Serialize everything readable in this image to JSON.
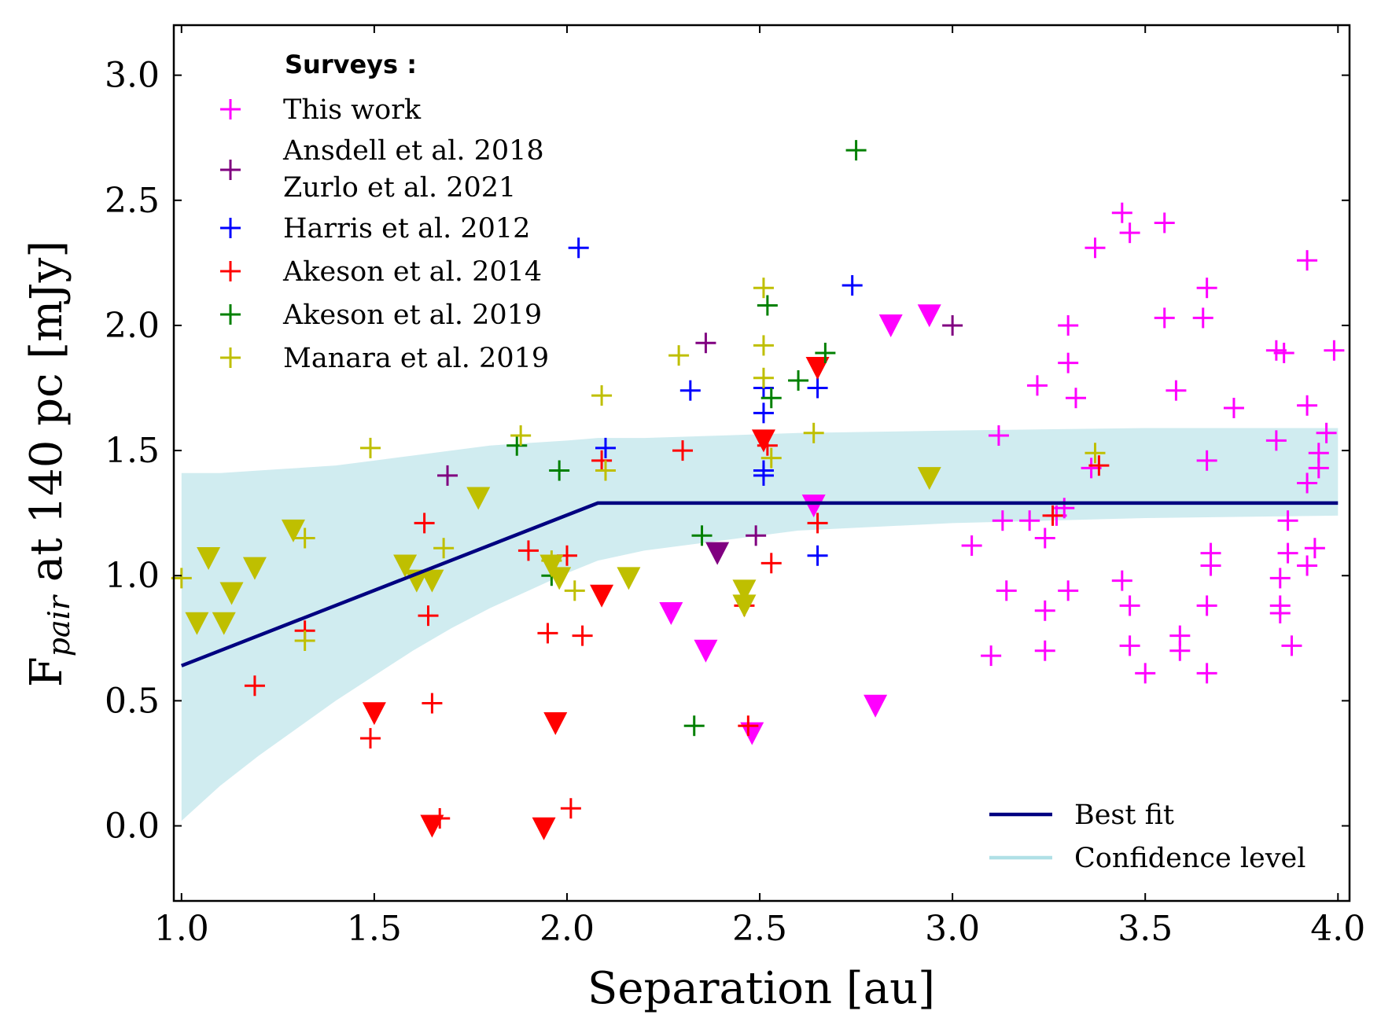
{
  "chart_data": {
    "type": "scatter",
    "xlabel": "Separation [au]",
    "ylabel_main": "F",
    "ylabel_sub": "pair",
    "ylabel_rest": " at 140 pc [mJy]",
    "xlim": [
      0.98,
      4.03
    ],
    "ylim": [
      -0.3,
      3.2
    ],
    "xticks": [
      "1.0",
      "1.5",
      "2.0",
      "2.5",
      "3.0",
      "3.5",
      "4.0"
    ],
    "xtick_values": [
      1.0,
      1.5,
      2.0,
      2.5,
      3.0,
      3.5,
      4.0
    ],
    "yticks": [
      "0.0",
      "0.5",
      "1.0",
      "1.5",
      "2.0",
      "2.5",
      "3.0"
    ],
    "ytick_values": [
      0.0,
      0.5,
      1.0,
      1.5,
      2.0,
      2.5,
      3.0
    ],
    "legend_title": "Surveys :",
    "series": [
      {
        "name": "This work",
        "color": "#ff00ff",
        "points": [
          [
            3.05,
            1.12
          ],
          [
            3.1,
            0.68
          ],
          [
            3.12,
            1.56
          ],
          [
            3.13,
            1.22
          ],
          [
            3.14,
            0.94
          ],
          [
            3.2,
            1.22
          ],
          [
            3.22,
            1.76
          ],
          [
            3.24,
            1.15
          ],
          [
            3.24,
            0.86
          ],
          [
            3.24,
            0.7
          ],
          [
            3.27,
            1.24
          ],
          [
            3.29,
            1.27
          ],
          [
            3.3,
            2.0
          ],
          [
            3.3,
            1.85
          ],
          [
            3.3,
            0.94
          ],
          [
            3.32,
            1.71
          ],
          [
            3.36,
            1.43
          ],
          [
            3.37,
            2.31
          ],
          [
            3.44,
            2.45
          ],
          [
            3.44,
            0.98
          ],
          [
            3.46,
            2.37
          ],
          [
            3.46,
            0.88
          ],
          [
            3.46,
            0.72
          ],
          [
            3.5,
            0.61
          ],
          [
            3.55,
            2.41
          ],
          [
            3.55,
            2.03
          ],
          [
            3.58,
            1.74
          ],
          [
            3.59,
            0.76
          ],
          [
            3.59,
            0.7
          ],
          [
            3.65,
            2.03
          ],
          [
            3.66,
            2.15
          ],
          [
            3.66,
            1.46
          ],
          [
            3.66,
            0.88
          ],
          [
            3.66,
            0.61
          ],
          [
            3.67,
            1.09
          ],
          [
            3.67,
            1.04
          ],
          [
            3.73,
            1.67
          ],
          [
            3.84,
            1.9
          ],
          [
            3.84,
            1.54
          ],
          [
            3.86,
            1.89
          ],
          [
            3.85,
            0.99
          ],
          [
            3.85,
            0.88
          ],
          [
            3.85,
            0.85
          ],
          [
            3.87,
            1.22
          ],
          [
            3.87,
            1.09
          ],
          [
            3.88,
            0.72
          ],
          [
            3.92,
            2.26
          ],
          [
            3.92,
            1.68
          ],
          [
            3.92,
            1.37
          ],
          [
            3.92,
            1.04
          ],
          [
            3.94,
            1.11
          ],
          [
            3.95,
            1.49
          ],
          [
            3.95,
            1.43
          ],
          [
            3.97,
            1.57
          ],
          [
            3.99,
            1.9
          ]
        ],
        "upper_limits": [
          [
            2.27,
            0.85
          ],
          [
            2.36,
            0.7
          ],
          [
            2.48,
            0.37
          ],
          [
            2.64,
            1.28
          ],
          [
            2.8,
            0.48
          ],
          [
            2.84,
            2.0
          ],
          [
            2.94,
            2.04
          ]
        ]
      },
      {
        "name": "Ansdell et al. 2018\nZurlo et al. 2021",
        "color": "#800080",
        "points": [
          [
            1.69,
            1.4
          ],
          [
            2.36,
            1.93
          ],
          [
            2.49,
            1.16
          ],
          [
            3.0,
            2.0
          ]
        ],
        "upper_limits": [
          [
            2.39,
            1.09
          ]
        ]
      },
      {
        "name": "Harris et al. 2012",
        "color": "#0000ff",
        "points": [
          [
            2.03,
            2.31
          ],
          [
            2.1,
            1.51
          ],
          [
            2.32,
            1.74
          ],
          [
            2.51,
            1.75
          ],
          [
            2.51,
            1.65
          ],
          [
            2.51,
            1.42
          ],
          [
            2.51,
            1.4
          ],
          [
            2.65,
            1.75
          ],
          [
            2.65,
            1.08
          ],
          [
            2.74,
            2.16
          ]
        ],
        "upper_limits": []
      },
      {
        "name": "Akeson et al. 2014",
        "color": "#ff0000",
        "points": [
          [
            1.19,
            0.56
          ],
          [
            1.32,
            0.78
          ],
          [
            1.49,
            0.35
          ],
          [
            1.63,
            1.21
          ],
          [
            1.64,
            0.84
          ],
          [
            1.65,
            0.49
          ],
          [
            1.67,
            0.03
          ],
          [
            1.9,
            1.1
          ],
          [
            1.95,
            0.77
          ],
          [
            2.0,
            1.08
          ],
          [
            2.01,
            0.07
          ],
          [
            2.04,
            0.76
          ],
          [
            2.09,
            1.46
          ],
          [
            2.3,
            1.5
          ],
          [
            2.46,
            0.88
          ],
          [
            2.47,
            0.4
          ],
          [
            2.52,
            1.52
          ],
          [
            2.53,
            1.05
          ],
          [
            2.65,
            1.21
          ],
          [
            3.26,
            1.24
          ],
          [
            3.38,
            1.44
          ]
        ],
        "upper_limits": [
          [
            1.5,
            0.45
          ],
          [
            1.65,
            0.0
          ],
          [
            1.94,
            -0.01
          ],
          [
            1.97,
            0.41
          ],
          [
            2.09,
            0.92
          ],
          [
            2.51,
            1.54
          ],
          [
            2.65,
            1.83
          ]
        ]
      },
      {
        "name": "Akeson et al. 2019",
        "color": "#008000",
        "points": [
          [
            1.87,
            1.52
          ],
          [
            1.96,
            1.0
          ],
          [
            1.98,
            1.42
          ],
          [
            2.33,
            0.4
          ],
          [
            2.35,
            1.16
          ],
          [
            2.52,
            2.08
          ],
          [
            2.53,
            1.71
          ],
          [
            2.6,
            1.78
          ],
          [
            2.67,
            1.89
          ],
          [
            2.75,
            2.7
          ]
        ],
        "upper_limits": []
      },
      {
        "name": "Manara et al. 2019",
        "color": "#bfbf00",
        "points": [
          [
            1.0,
            0.99
          ],
          [
            1.32,
            1.15
          ],
          [
            1.32,
            0.74
          ],
          [
            1.49,
            1.51
          ],
          [
            1.68,
            1.11
          ],
          [
            1.88,
            1.56
          ],
          [
            1.96,
            1.06
          ],
          [
            2.02,
            0.94
          ],
          [
            2.09,
            1.72
          ],
          [
            2.1,
            1.42
          ],
          [
            2.29,
            1.88
          ],
          [
            2.51,
            2.15
          ],
          [
            2.51,
            1.92
          ],
          [
            2.51,
            1.79
          ],
          [
            2.53,
            1.47
          ],
          [
            2.64,
            1.57
          ],
          [
            3.37,
            1.49
          ]
        ],
        "upper_limits": [
          [
            1.04,
            0.81
          ],
          [
            1.07,
            1.07
          ],
          [
            1.11,
            0.81
          ],
          [
            1.13,
            0.93
          ],
          [
            1.19,
            1.03
          ],
          [
            1.29,
            1.18
          ],
          [
            1.58,
            1.04
          ],
          [
            1.61,
            0.98
          ],
          [
            1.65,
            0.98
          ],
          [
            1.77,
            1.31
          ],
          [
            1.96,
            1.04
          ],
          [
            1.98,
            0.99
          ],
          [
            2.16,
            0.99
          ],
          [
            2.46,
            0.94
          ],
          [
            2.46,
            0.88
          ],
          [
            2.94,
            1.39
          ]
        ]
      }
    ],
    "best_fit": {
      "label": "Best fit",
      "color": "#000080",
      "x": [
        1.0,
        2.08,
        4.0
      ],
      "y": [
        0.64,
        1.29,
        1.29
      ]
    },
    "confidence": {
      "label": "Confidence level",
      "color": "#b0e0e6",
      "x": [
        1.0,
        1.1,
        1.2,
        1.3,
        1.4,
        1.5,
        1.6,
        1.7,
        1.8,
        1.9,
        2.0,
        2.08,
        2.2,
        2.4,
        2.6,
        3.0,
        3.5,
        4.0
      ],
      "upper": [
        1.41,
        1.41,
        1.42,
        1.43,
        1.44,
        1.46,
        1.48,
        1.5,
        1.52,
        1.53,
        1.54,
        1.55,
        1.55,
        1.56,
        1.57,
        1.58,
        1.59,
        1.59
      ],
      "lower": [
        0.02,
        0.16,
        0.28,
        0.39,
        0.5,
        0.6,
        0.7,
        0.79,
        0.87,
        0.94,
        1.01,
        1.06,
        1.1,
        1.14,
        1.18,
        1.21,
        1.23,
        1.24
      ]
    },
    "fit_legend_position": "bottom-right",
    "survey_legend_position": "top-left"
  }
}
